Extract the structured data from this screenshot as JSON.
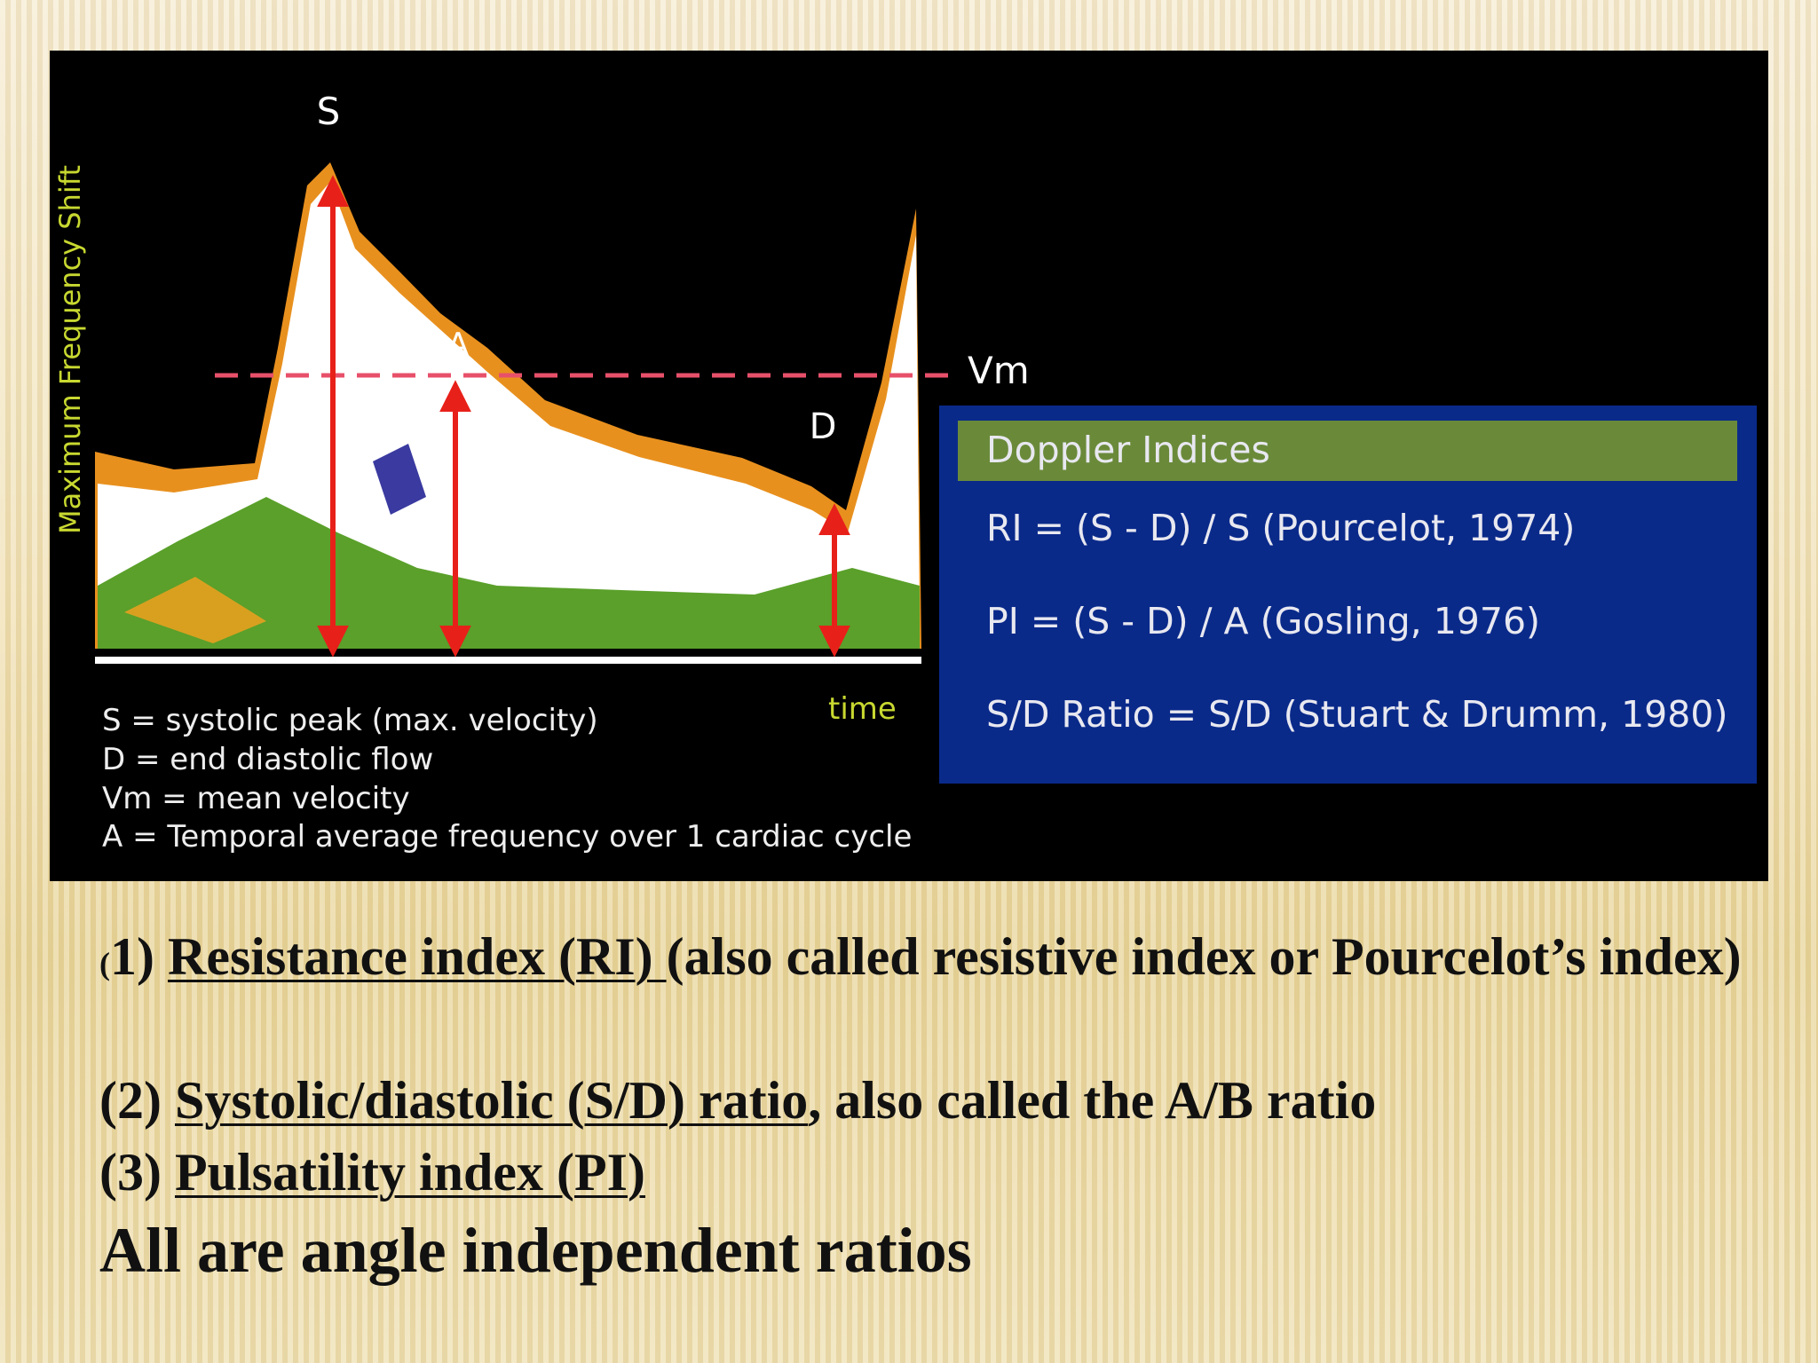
{
  "figure": {
    "y_axis_label": "Maximum Frequency Shift",
    "x_axis_label": "time",
    "peak_labels": {
      "s": "S",
      "a": "A",
      "d": "D",
      "vm": "Vm"
    },
    "legend": [
      "S = systolic peak (max. velocity)",
      "D = end diastolic flow",
      "Vm = mean velocity",
      "A = Temporal average frequency over 1 cardiac cycle"
    ],
    "indices_box": {
      "title": "Doppler Indices",
      "lines": [
        "RI = (S - D) / S (Pourcelot, 1974)",
        "PI = (S - D) / A (Gosling, 1976)",
        "S/D Ratio = S/D (Stuart & Drumm, 1980)"
      ]
    }
  },
  "text": {
    "items": [
      {
        "open": "(",
        "number": "1)",
        "term": "Resistance index (RI) ",
        "rest": "(also called resistive index or Pourcelot’s index)"
      },
      {
        "number": "(2)",
        "term": "Systolic/diastolic (S/D) ratio",
        "rest": ", also called the A/B ratio"
      },
      {
        "number": "(3)",
        "term": "Pulsatility index (PI)"
      }
    ],
    "conclusion": "All are angle independent ratios"
  }
}
